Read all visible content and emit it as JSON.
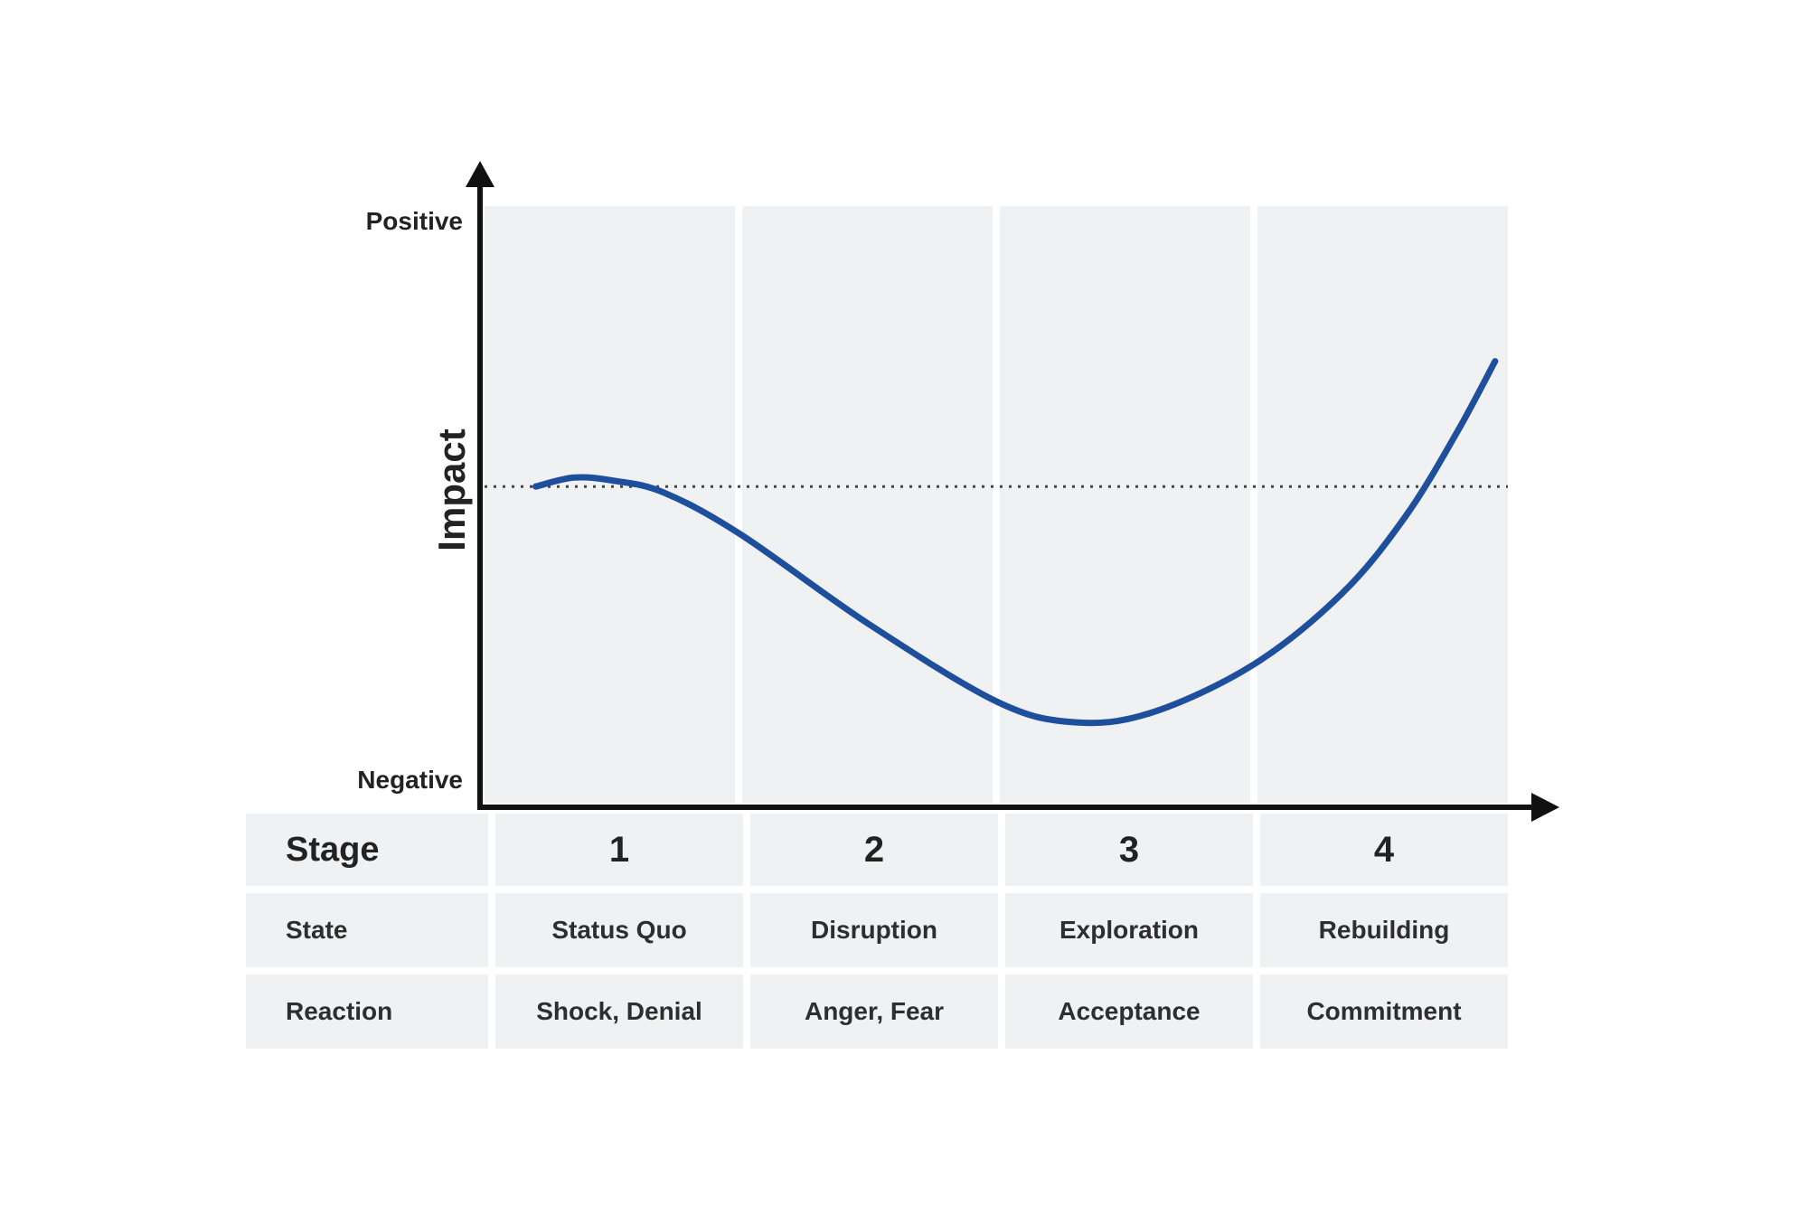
{
  "y_axis": {
    "label": "Impact",
    "top_label": "Positive",
    "bottom_label": "Negative"
  },
  "colors": {
    "curve": "#1e4f9c",
    "panel": "#f0f1f3",
    "axis": "#111111",
    "baseline": "#444444"
  },
  "chart_data": {
    "type": "line",
    "xlabel": "",
    "ylabel": "Impact",
    "x_categories": [
      "1",
      "2",
      "3",
      "4"
    ],
    "xlim": [
      0,
      4
    ],
    "ylim": [
      0,
      1
    ],
    "baseline_y": 0.53,
    "series": [
      {
        "points": [
          [
            0.2,
            0.53
          ],
          [
            0.35,
            0.545
          ],
          [
            0.5,
            0.54
          ],
          [
            0.7,
            0.52
          ],
          [
            1.0,
            0.45
          ],
          [
            1.5,
            0.3
          ],
          [
            2.0,
            0.17
          ],
          [
            2.3,
            0.135
          ],
          [
            2.6,
            0.15
          ],
          [
            3.0,
            0.23
          ],
          [
            3.35,
            0.35
          ],
          [
            3.6,
            0.48
          ],
          [
            3.8,
            0.62
          ],
          [
            3.95,
            0.74
          ]
        ]
      }
    ]
  },
  "table": {
    "stage_label": "Stage",
    "stages": [
      "1",
      "2",
      "3",
      "4"
    ],
    "rows": [
      {
        "label": "State",
        "values": [
          "Status Quo",
          "Disruption",
          "Exploration",
          "Rebuilding"
        ]
      },
      {
        "label": "Reaction",
        "values": [
          "Shock, Denial",
          "Anger, Fear",
          "Acceptance",
          "Commitment"
        ]
      }
    ]
  }
}
